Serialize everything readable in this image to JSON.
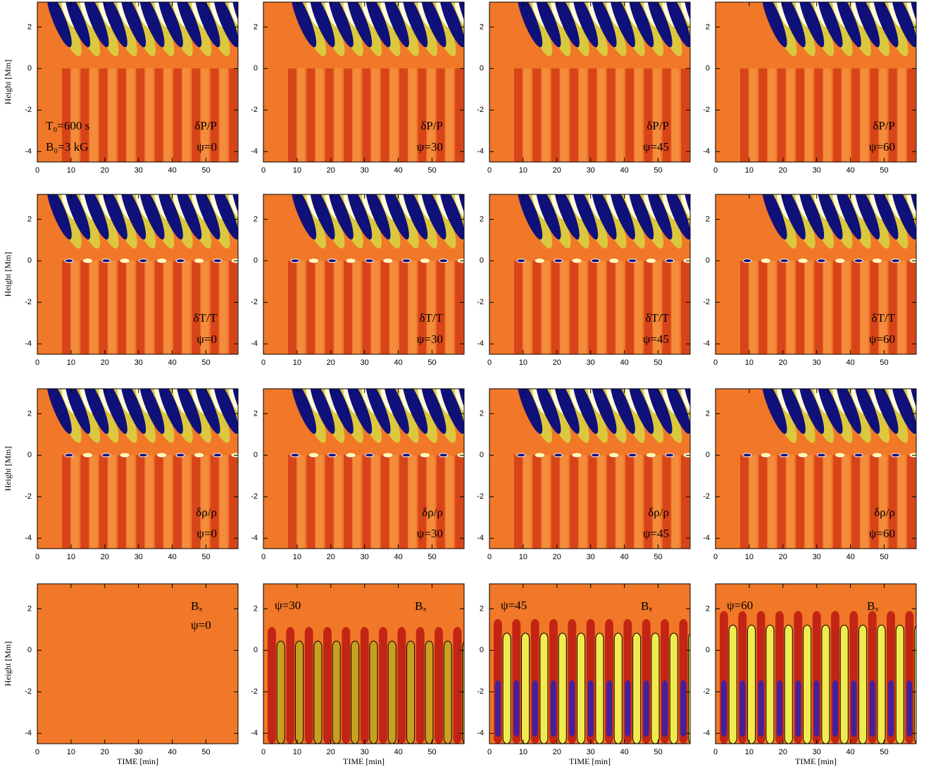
{
  "chart_data": [
    {
      "type": "heatmap",
      "label": "δP/P",
      "psi": "ψ=0",
      "notes": [
        "T₀=600 s",
        "B₀=3 kG"
      ],
      "ylabel": "Height [Mm]",
      "xlim": [
        0,
        59.5
      ],
      "ylim": [
        -4.5,
        3.2
      ],
      "xticks": [
        0,
        10,
        20,
        30,
        40,
        50
      ],
      "yticks": [
        -4,
        -2,
        0,
        2
      ]
    },
    {
      "type": "heatmap",
      "label": "δP/P",
      "psi": "ψ=30",
      "xlim": [
        0,
        59.5
      ],
      "ylim": [
        -4.5,
        3.2
      ],
      "xticks": [
        0,
        10,
        20,
        30,
        40,
        50
      ],
      "yticks": [
        -4,
        -2,
        0,
        2
      ]
    },
    {
      "type": "heatmap",
      "label": "δP/P",
      "psi": "ψ=45",
      "xlim": [
        0,
        59.5
      ],
      "ylim": [
        -4.5,
        3.2
      ],
      "xticks": [
        0,
        10,
        20,
        30,
        40,
        50
      ],
      "yticks": [
        -4,
        -2,
        0,
        2
      ]
    },
    {
      "type": "heatmap",
      "label": "δP/P",
      "psi": "ψ=60",
      "xlim": [
        0,
        59.5
      ],
      "ylim": [
        -4.5,
        3.2
      ],
      "xticks": [
        0,
        10,
        20,
        30,
        40,
        50
      ],
      "yticks": [
        -4,
        -2,
        0,
        2
      ]
    },
    {
      "type": "heatmap",
      "label": "δT/T",
      "psi": "ψ=0",
      "ylabel": "Height [Mm]",
      "xlim": [
        0,
        59.5
      ],
      "ylim": [
        -4.5,
        3.2
      ],
      "xticks": [
        0,
        10,
        20,
        30,
        40,
        50
      ],
      "yticks": [
        -4,
        -2,
        0,
        2
      ]
    },
    {
      "type": "heatmap",
      "label": "δT/T",
      "psi": "ψ=30",
      "xlim": [
        0,
        59.5
      ],
      "ylim": [
        -4.5,
        3.2
      ],
      "xticks": [
        0,
        10,
        20,
        30,
        40,
        50
      ],
      "yticks": [
        -4,
        -2,
        0,
        2
      ]
    },
    {
      "type": "heatmap",
      "label": "δT/T",
      "psi": "ψ=45",
      "xlim": [
        0,
        59.5
      ],
      "ylim": [
        -4.5,
        3.2
      ],
      "xticks": [
        0,
        10,
        20,
        30,
        40,
        50
      ],
      "yticks": [
        -4,
        -2,
        0,
        2
      ]
    },
    {
      "type": "heatmap",
      "label": "δT/T",
      "psi": "ψ=60",
      "xlim": [
        0,
        59.5
      ],
      "ylim": [
        -4.5,
        3.2
      ],
      "xticks": [
        0,
        10,
        20,
        30,
        40,
        50
      ],
      "yticks": [
        -4,
        -2,
        0,
        2
      ]
    },
    {
      "type": "heatmap",
      "label": "δρ/ρ",
      "psi": "ψ=0",
      "ylabel": "Height [Mm]",
      "xlim": [
        0,
        59.5
      ],
      "ylim": [
        -4.5,
        3.2
      ],
      "xticks": [
        0,
        10,
        20,
        30,
        40,
        50
      ],
      "yticks": [
        -4,
        -2,
        0,
        2
      ]
    },
    {
      "type": "heatmap",
      "label": "δρ/ρ",
      "psi": "ψ=30",
      "xlim": [
        0,
        59.5
      ],
      "ylim": [
        -4.5,
        3.2
      ],
      "xticks": [
        0,
        10,
        20,
        30,
        40,
        50
      ],
      "yticks": [
        -4,
        -2,
        0,
        2
      ]
    },
    {
      "type": "heatmap",
      "label": "δρ/ρ",
      "psi": "ψ=45",
      "xlim": [
        0,
        59.5
      ],
      "ylim": [
        -4.5,
        3.2
      ],
      "xticks": [
        0,
        10,
        20,
        30,
        40,
        50
      ],
      "yticks": [
        -4,
        -2,
        0,
        2
      ]
    },
    {
      "type": "heatmap",
      "label": "δρ/ρ",
      "psi": "ψ=60",
      "xlim": [
        0,
        59.5
      ],
      "ylim": [
        -4.5,
        3.2
      ],
      "xticks": [
        0,
        10,
        20,
        30,
        40,
        50
      ],
      "yticks": [
        -4,
        -2,
        0,
        2
      ]
    },
    {
      "type": "heatmap",
      "label": "Bₓ",
      "psi": "ψ=0",
      "ylabel": "Height [Mm]",
      "xlabel": "TIME [min]",
      "xlim": [
        0,
        59.5
      ],
      "ylim": [
        -4.5,
        3.2
      ],
      "xticks": [
        0,
        10,
        20,
        30,
        40,
        50
      ],
      "yticks": [
        -4,
        -2,
        0,
        2
      ]
    },
    {
      "type": "heatmap",
      "label": "Bₓ",
      "psi": "ψ=30",
      "xlabel": "TIME [min]",
      "xlim": [
        0,
        59.5
      ],
      "ylim": [
        -4.5,
        3.2
      ],
      "xticks": [
        0,
        10,
        20,
        30,
        40,
        50
      ],
      "yticks": [
        -4,
        -2,
        0,
        2
      ]
    },
    {
      "type": "heatmap",
      "label": "Bₓ",
      "psi": "ψ=45",
      "xlabel": "TIME [min]",
      "xlim": [
        0,
        59.5
      ],
      "ylim": [
        -4.5,
        3.2
      ],
      "xticks": [
        0,
        10,
        20,
        30,
        40,
        50
      ],
      "yticks": [
        -4,
        -2,
        0,
        2
      ]
    },
    {
      "type": "heatmap",
      "label": "Bₓ",
      "psi": "ψ=60",
      "xlabel": "TIME [min]",
      "xlim": [
        0,
        59.5
      ],
      "ylim": [
        -4.5,
        3.2
      ],
      "xticks": [
        0,
        10,
        20,
        30,
        40,
        50
      ],
      "yticks": [
        -4,
        -2,
        0,
        2
      ]
    }
  ]
}
